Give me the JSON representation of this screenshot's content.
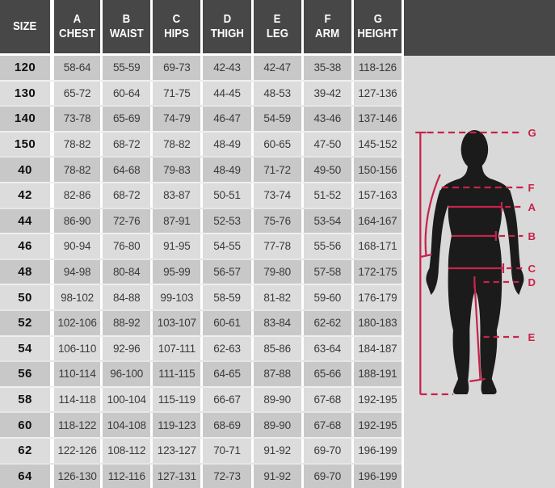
{
  "colors": {
    "header_bg": "#474747",
    "row_dark": "#c8c8c8",
    "row_light": "#dcdcdc",
    "figure_bg": "#d9d9d9",
    "accent_red": "#c7234a",
    "silhouette": "#1b1b1b"
  },
  "table": {
    "headers": [
      {
        "letter": "",
        "label": "SIZE"
      },
      {
        "letter": "A",
        "label": "CHEST"
      },
      {
        "letter": "B",
        "label": "WAIST"
      },
      {
        "letter": "C",
        "label": "HIPS"
      },
      {
        "letter": "D",
        "label": "THIGH"
      },
      {
        "letter": "E",
        "label": "LEG"
      },
      {
        "letter": "F",
        "label": "ARM"
      },
      {
        "letter": "G",
        "label": "HEIGHT"
      }
    ],
    "rows": [
      {
        "size": "120",
        "values": [
          "58-64",
          "55-59",
          "69-73",
          "42-43",
          "42-47",
          "35-38",
          "118-126"
        ]
      },
      {
        "size": "130",
        "values": [
          "65-72",
          "60-64",
          "71-75",
          "44-45",
          "48-53",
          "39-42",
          "127-136"
        ]
      },
      {
        "size": "140",
        "values": [
          "73-78",
          "65-69",
          "74-79",
          "46-47",
          "54-59",
          "43-46",
          "137-146"
        ]
      },
      {
        "size": "150",
        "values": [
          "78-82",
          "68-72",
          "78-82",
          "48-49",
          "60-65",
          "47-50",
          "145-152"
        ]
      },
      {
        "size": "40",
        "values": [
          "78-82",
          "64-68",
          "79-83",
          "48-49",
          "71-72",
          "49-50",
          "150-156"
        ]
      },
      {
        "size": "42",
        "values": [
          "82-86",
          "68-72",
          "83-87",
          "50-51",
          "73-74",
          "51-52",
          "157-163"
        ]
      },
      {
        "size": "44",
        "values": [
          "86-90",
          "72-76",
          "87-91",
          "52-53",
          "75-76",
          "53-54",
          "164-167"
        ]
      },
      {
        "size": "46",
        "values": [
          "90-94",
          "76-80",
          "91-95",
          "54-55",
          "77-78",
          "55-56",
          "168-171"
        ]
      },
      {
        "size": "48",
        "values": [
          "94-98",
          "80-84",
          "95-99",
          "56-57",
          "79-80",
          "57-58",
          "172-175"
        ]
      },
      {
        "size": "50",
        "values": [
          "98-102",
          "84-88",
          "99-103",
          "58-59",
          "81-82",
          "59-60",
          "176-179"
        ]
      },
      {
        "size": "52",
        "values": [
          "102-106",
          "88-92",
          "103-107",
          "60-61",
          "83-84",
          "62-62",
          "180-183"
        ]
      },
      {
        "size": "54",
        "values": [
          "106-110",
          "92-96",
          "107-111",
          "62-63",
          "85-86",
          "63-64",
          "184-187"
        ]
      },
      {
        "size": "56",
        "values": [
          "110-114",
          "96-100",
          "111-115",
          "64-65",
          "87-88",
          "65-66",
          "188-191"
        ]
      },
      {
        "size": "58",
        "values": [
          "114-118",
          "100-104",
          "115-119",
          "66-67",
          "89-90",
          "67-68",
          "192-195"
        ]
      },
      {
        "size": "60",
        "values": [
          "118-122",
          "104-108",
          "119-123",
          "68-69",
          "89-90",
          "67-68",
          "192-195"
        ]
      },
      {
        "size": "62",
        "values": [
          "122-126",
          "108-112",
          "123-127",
          "70-71",
          "91-92",
          "69-70",
          "196-199"
        ]
      },
      {
        "size": "64",
        "values": [
          "126-130",
          "112-116",
          "127-131",
          "72-73",
          "91-92",
          "69-70",
          "196-199"
        ]
      }
    ]
  },
  "figure": {
    "measure_labels": [
      "G",
      "F",
      "A",
      "B",
      "C",
      "D",
      "E"
    ]
  }
}
